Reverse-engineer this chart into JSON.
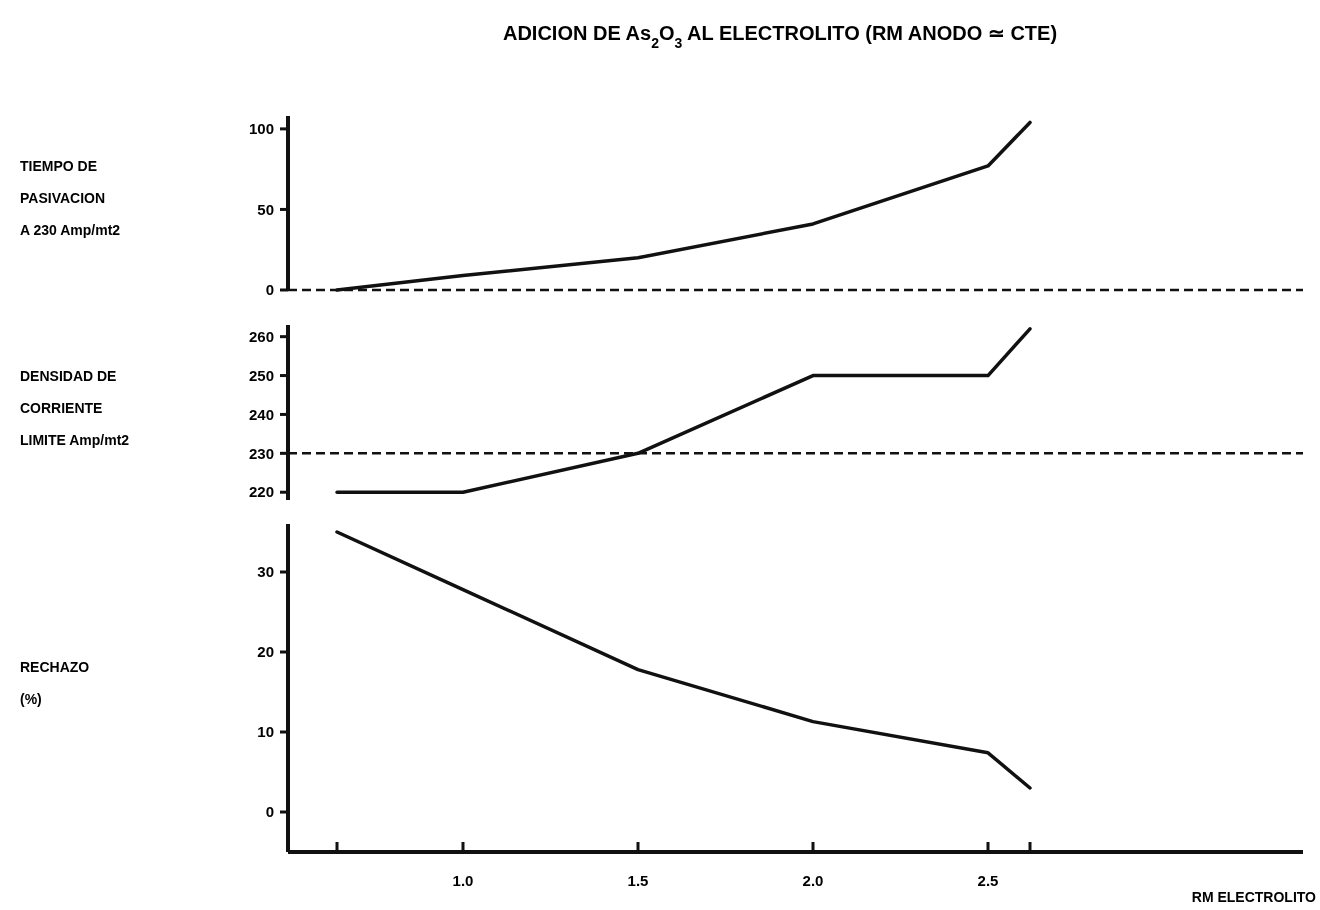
{
  "chart_data": [
    {
      "type": "line",
      "title": "ADICION DE As$_{2}$O$_{3}$ AL ELECTROLITO (RM ANODO ≃ CTE)",
      "ylabel": "TIEMPO DE\nPASIVACION\nA 230 Amp/mt2",
      "x": [
        0.64,
        1.0,
        1.5,
        2.0,
        2.5,
        2.62
      ],
      "series": [
        {
          "color": "#111111",
          "values": [
            0,
            9,
            20,
            41,
            77,
            104
          ]
        }
      ],
      "xlim": [
        0.5,
        3.4
      ],
      "ylim": [
        0,
        108
      ],
      "yticks": [
        0,
        50,
        100
      ],
      "tick_labels": "y",
      "ref_lines": [
        {
          "axis": "y",
          "value": 0,
          "line_style": "dashed",
          "color": "#111111"
        }
      ],
      "line_style": "solid"
    },
    {
      "type": "line",
      "ylabel": "DENSIDAD DE\nCORRIENTE\nLIMITE Amp/mt2",
      "x": [
        0.64,
        1.0,
        1.5,
        2.0,
        2.5,
        2.62
      ],
      "series": [
        {
          "color": "#111111",
          "values": [
            220,
            220,
            230,
            250,
            250,
            262
          ]
        }
      ],
      "xlim": [
        0.5,
        3.4
      ],
      "ylim": [
        218,
        263
      ],
      "yticks": [
        220,
        230,
        240,
        250,
        260
      ],
      "tick_labels": "y",
      "ref_lines": [
        {
          "axis": "y",
          "value": 230,
          "line_style": "dashed",
          "color": "#111111"
        }
      ],
      "line_style": "solid"
    },
    {
      "type": "line",
      "ylabel": "RECHAZO\n(%)",
      "xlabel": "RM ELECTROLITO",
      "x": [
        0.64,
        1.0,
        1.5,
        2.0,
        2.5,
        2.62
      ],
      "series": [
        {
          "color": "#111111",
          "values": [
            35,
            27.8,
            17.8,
            11.3,
            7.4,
            3
          ]
        }
      ],
      "xlim": [
        0.5,
        3.4
      ],
      "ylim": [
        -5,
        36
      ],
      "xticks": [
        {
          "value": 0.64,
          "label": null
        },
        {
          "value": 1.0,
          "label": "1.0"
        },
        {
          "value": 1.5,
          "label": "1.5"
        },
        {
          "value": 2.0,
          "label": "2.0"
        },
        {
          "value": 2.5,
          "label": "2.5"
        },
        {
          "value": 2.62,
          "label": null
        }
      ],
      "yticks": [
        0,
        10,
        20,
        30
      ],
      "line_style": "solid"
    }
  ]
}
